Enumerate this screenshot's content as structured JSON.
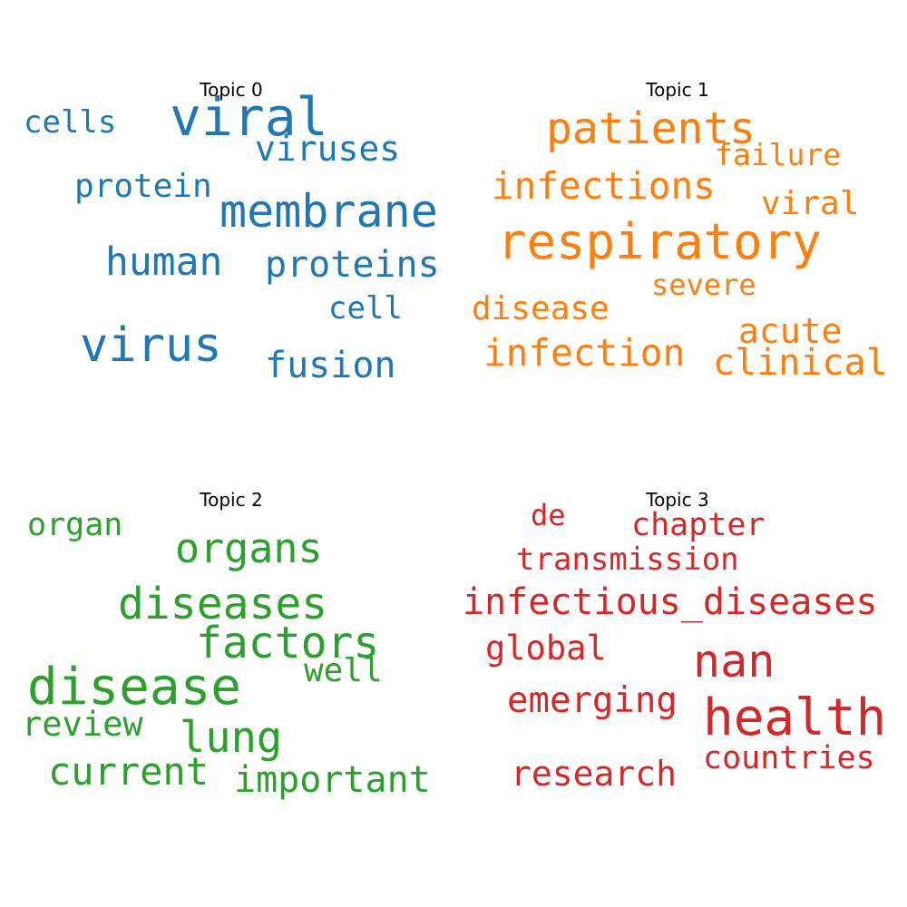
{
  "chart_data": [
    {
      "type": "wordcloud",
      "title": "Topic 0",
      "color": "#1f77b4",
      "words": [
        {
          "text": "viral",
          "weight": 58
        },
        {
          "text": "virus",
          "weight": 52
        },
        {
          "text": "membrane",
          "weight": 50
        },
        {
          "text": "human",
          "weight": 43
        },
        {
          "text": "proteins",
          "weight": 40
        },
        {
          "text": "fusion",
          "weight": 40
        },
        {
          "text": "viruses",
          "weight": 38
        },
        {
          "text": "protein",
          "weight": 36
        },
        {
          "text": "cells",
          "weight": 34
        },
        {
          "text": "cell",
          "weight": 34
        }
      ]
    },
    {
      "type": "wordcloud",
      "title": "Topic 1",
      "color": "#ff7f0e",
      "words": [
        {
          "text": "respiratory",
          "weight": 54
        },
        {
          "text": "patients",
          "weight": 48
        },
        {
          "text": "infections",
          "weight": 41
        },
        {
          "text": "infection",
          "weight": 41
        },
        {
          "text": "clinical",
          "weight": 40
        },
        {
          "text": "acute",
          "weight": 38
        },
        {
          "text": "disease",
          "weight": 36
        },
        {
          "text": "viral",
          "weight": 36
        },
        {
          "text": "failure",
          "weight": 33
        },
        {
          "text": "severe",
          "weight": 32
        }
      ]
    },
    {
      "type": "wordcloud",
      "title": "Topic 2",
      "color": "#2ca02c",
      "words": [
        {
          "text": "disease",
          "weight": 56
        },
        {
          "text": "diseases",
          "weight": 48
        },
        {
          "text": "factors",
          "weight": 48
        },
        {
          "text": "lung",
          "weight": 47
        },
        {
          "text": "organs",
          "weight": 45
        },
        {
          "text": "current",
          "weight": 42
        },
        {
          "text": "important",
          "weight": 40
        },
        {
          "text": "review",
          "weight": 37
        },
        {
          "text": "well",
          "weight": 36
        },
        {
          "text": "organ",
          "weight": 35
        }
      ]
    },
    {
      "type": "wordcloud",
      "title": "Topic 3",
      "color": "#d62728",
      "words": [
        {
          "text": "health",
          "weight": 56
        },
        {
          "text": "nan",
          "weight": 50
        },
        {
          "text": "infectious_diseases",
          "weight": 40
        },
        {
          "text": "emerging",
          "weight": 39
        },
        {
          "text": "research",
          "weight": 38
        },
        {
          "text": "global",
          "weight": 37
        },
        {
          "text": "chapter",
          "weight": 35
        },
        {
          "text": "transmission",
          "weight": 34
        },
        {
          "text": "countries",
          "weight": 35
        },
        {
          "text": "de",
          "weight": 32
        }
      ]
    }
  ]
}
